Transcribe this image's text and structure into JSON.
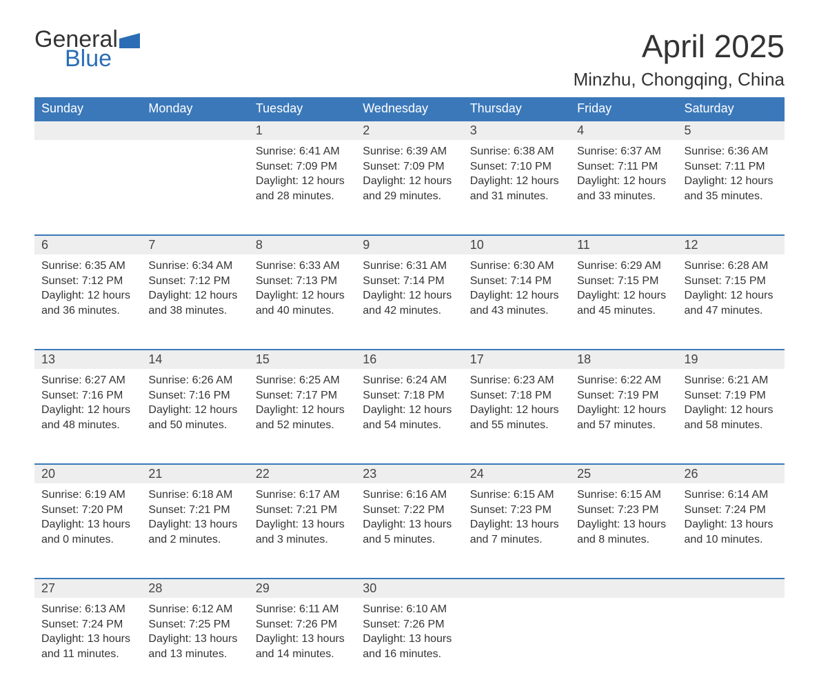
{
  "brand": {
    "general": "General",
    "blue": "Blue"
  },
  "title": "April 2025",
  "location": "Minzhu, Chongqing, China",
  "colors": {
    "header_bg": "#3b78b9",
    "header_text": "#ffffff",
    "daynum_bg": "#eeeeee",
    "row_divider": "#3b78b9",
    "body_text": "#333333",
    "logo_blue": "#2a6db5",
    "background": "#ffffff"
  },
  "typography": {
    "title_fontsize": 46,
    "location_fontsize": 26,
    "header_fontsize": 18,
    "daynum_fontsize": 18,
    "cell_fontsize": 16,
    "logo_fontsize": 34
  },
  "layout": {
    "columns": 7,
    "rows": 5
  },
  "weekdays": [
    "Sunday",
    "Monday",
    "Tuesday",
    "Wednesday",
    "Thursday",
    "Friday",
    "Saturday"
  ],
  "weeks": [
    [
      null,
      null,
      {
        "n": "1",
        "sr": "Sunrise: 6:41 AM",
        "ss": "Sunset: 7:09 PM",
        "d1": "Daylight: 12 hours",
        "d2": "and 28 minutes."
      },
      {
        "n": "2",
        "sr": "Sunrise: 6:39 AM",
        "ss": "Sunset: 7:09 PM",
        "d1": "Daylight: 12 hours",
        "d2": "and 29 minutes."
      },
      {
        "n": "3",
        "sr": "Sunrise: 6:38 AM",
        "ss": "Sunset: 7:10 PM",
        "d1": "Daylight: 12 hours",
        "d2": "and 31 minutes."
      },
      {
        "n": "4",
        "sr": "Sunrise: 6:37 AM",
        "ss": "Sunset: 7:11 PM",
        "d1": "Daylight: 12 hours",
        "d2": "and 33 minutes."
      },
      {
        "n": "5",
        "sr": "Sunrise: 6:36 AM",
        "ss": "Sunset: 7:11 PM",
        "d1": "Daylight: 12 hours",
        "d2": "and 35 minutes."
      }
    ],
    [
      {
        "n": "6",
        "sr": "Sunrise: 6:35 AM",
        "ss": "Sunset: 7:12 PM",
        "d1": "Daylight: 12 hours",
        "d2": "and 36 minutes."
      },
      {
        "n": "7",
        "sr": "Sunrise: 6:34 AM",
        "ss": "Sunset: 7:12 PM",
        "d1": "Daylight: 12 hours",
        "d2": "and 38 minutes."
      },
      {
        "n": "8",
        "sr": "Sunrise: 6:33 AM",
        "ss": "Sunset: 7:13 PM",
        "d1": "Daylight: 12 hours",
        "d2": "and 40 minutes."
      },
      {
        "n": "9",
        "sr": "Sunrise: 6:31 AM",
        "ss": "Sunset: 7:14 PM",
        "d1": "Daylight: 12 hours",
        "d2": "and 42 minutes."
      },
      {
        "n": "10",
        "sr": "Sunrise: 6:30 AM",
        "ss": "Sunset: 7:14 PM",
        "d1": "Daylight: 12 hours",
        "d2": "and 43 minutes."
      },
      {
        "n": "11",
        "sr": "Sunrise: 6:29 AM",
        "ss": "Sunset: 7:15 PM",
        "d1": "Daylight: 12 hours",
        "d2": "and 45 minutes."
      },
      {
        "n": "12",
        "sr": "Sunrise: 6:28 AM",
        "ss": "Sunset: 7:15 PM",
        "d1": "Daylight: 12 hours",
        "d2": "and 47 minutes."
      }
    ],
    [
      {
        "n": "13",
        "sr": "Sunrise: 6:27 AM",
        "ss": "Sunset: 7:16 PM",
        "d1": "Daylight: 12 hours",
        "d2": "and 48 minutes."
      },
      {
        "n": "14",
        "sr": "Sunrise: 6:26 AM",
        "ss": "Sunset: 7:16 PM",
        "d1": "Daylight: 12 hours",
        "d2": "and 50 minutes."
      },
      {
        "n": "15",
        "sr": "Sunrise: 6:25 AM",
        "ss": "Sunset: 7:17 PM",
        "d1": "Daylight: 12 hours",
        "d2": "and 52 minutes."
      },
      {
        "n": "16",
        "sr": "Sunrise: 6:24 AM",
        "ss": "Sunset: 7:18 PM",
        "d1": "Daylight: 12 hours",
        "d2": "and 54 minutes."
      },
      {
        "n": "17",
        "sr": "Sunrise: 6:23 AM",
        "ss": "Sunset: 7:18 PM",
        "d1": "Daylight: 12 hours",
        "d2": "and 55 minutes."
      },
      {
        "n": "18",
        "sr": "Sunrise: 6:22 AM",
        "ss": "Sunset: 7:19 PM",
        "d1": "Daylight: 12 hours",
        "d2": "and 57 minutes."
      },
      {
        "n": "19",
        "sr": "Sunrise: 6:21 AM",
        "ss": "Sunset: 7:19 PM",
        "d1": "Daylight: 12 hours",
        "d2": "and 58 minutes."
      }
    ],
    [
      {
        "n": "20",
        "sr": "Sunrise: 6:19 AM",
        "ss": "Sunset: 7:20 PM",
        "d1": "Daylight: 13 hours",
        "d2": "and 0 minutes."
      },
      {
        "n": "21",
        "sr": "Sunrise: 6:18 AM",
        "ss": "Sunset: 7:21 PM",
        "d1": "Daylight: 13 hours",
        "d2": "and 2 minutes."
      },
      {
        "n": "22",
        "sr": "Sunrise: 6:17 AM",
        "ss": "Sunset: 7:21 PM",
        "d1": "Daylight: 13 hours",
        "d2": "and 3 minutes."
      },
      {
        "n": "23",
        "sr": "Sunrise: 6:16 AM",
        "ss": "Sunset: 7:22 PM",
        "d1": "Daylight: 13 hours",
        "d2": "and 5 minutes."
      },
      {
        "n": "24",
        "sr": "Sunrise: 6:15 AM",
        "ss": "Sunset: 7:23 PM",
        "d1": "Daylight: 13 hours",
        "d2": "and 7 minutes."
      },
      {
        "n": "25",
        "sr": "Sunrise: 6:15 AM",
        "ss": "Sunset: 7:23 PM",
        "d1": "Daylight: 13 hours",
        "d2": "and 8 minutes."
      },
      {
        "n": "26",
        "sr": "Sunrise: 6:14 AM",
        "ss": "Sunset: 7:24 PM",
        "d1": "Daylight: 13 hours",
        "d2": "and 10 minutes."
      }
    ],
    [
      {
        "n": "27",
        "sr": "Sunrise: 6:13 AM",
        "ss": "Sunset: 7:24 PM",
        "d1": "Daylight: 13 hours",
        "d2": "and 11 minutes."
      },
      {
        "n": "28",
        "sr": "Sunrise: 6:12 AM",
        "ss": "Sunset: 7:25 PM",
        "d1": "Daylight: 13 hours",
        "d2": "and 13 minutes."
      },
      {
        "n": "29",
        "sr": "Sunrise: 6:11 AM",
        "ss": "Sunset: 7:26 PM",
        "d1": "Daylight: 13 hours",
        "d2": "and 14 minutes."
      },
      {
        "n": "30",
        "sr": "Sunrise: 6:10 AM",
        "ss": "Sunset: 7:26 PM",
        "d1": "Daylight: 13 hours",
        "d2": "and 16 minutes."
      },
      null,
      null,
      null
    ]
  ]
}
